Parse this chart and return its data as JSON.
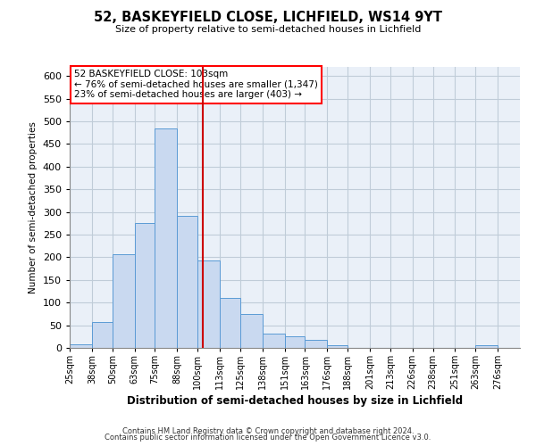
{
  "title": "52, BASKEYFIELD CLOSE, LICHFIELD, WS14 9YT",
  "subtitle": "Size of property relative to semi-detached houses in Lichfield",
  "xlabel": "Distribution of semi-detached houses by size in Lichfield",
  "ylabel": "Number of semi-detached properties",
  "annotation_line1": "52 BASKEYFIELD CLOSE: 103sqm",
  "annotation_line2": "← 76% of semi-detached houses are smaller (1,347)",
  "annotation_line3": "23% of semi-detached houses are larger (403) →",
  "footer1": "Contains HM Land Registry data © Crown copyright and database right 2024.",
  "footer2": "Contains public sector information licensed under the Open Government Licence v3.0.",
  "bin_labels": [
    "25sqm",
    "38sqm",
    "50sqm",
    "63sqm",
    "75sqm",
    "88sqm",
    "100sqm",
    "113sqm",
    "125sqm",
    "138sqm",
    "151sqm",
    "163sqm",
    "176sqm",
    "188sqm",
    "201sqm",
    "213sqm",
    "226sqm",
    "238sqm",
    "251sqm",
    "263sqm",
    "276sqm"
  ],
  "bin_edges": [
    25,
    38,
    50,
    63,
    75,
    88,
    100,
    113,
    125,
    138,
    151,
    163,
    176,
    188,
    201,
    213,
    226,
    238,
    251,
    263,
    276,
    289
  ],
  "bar_heights": [
    8,
    57,
    207,
    275,
    484,
    292,
    192,
    111,
    74,
    32,
    25,
    17,
    5,
    0,
    0,
    0,
    0,
    0,
    0,
    5,
    0
  ],
  "property_size": 103,
  "bar_color": "#c9d9f0",
  "bar_edge_color": "#5b9bd5",
  "vline_color": "#cc0000",
  "ylim": [
    0,
    620
  ],
  "yticks": [
    0,
    50,
    100,
    150,
    200,
    250,
    300,
    350,
    400,
    450,
    500,
    550,
    600
  ],
  "background_color": "#eaf0f8",
  "plot_background": "#ffffff",
  "grid_color": "#c0ccd8"
}
